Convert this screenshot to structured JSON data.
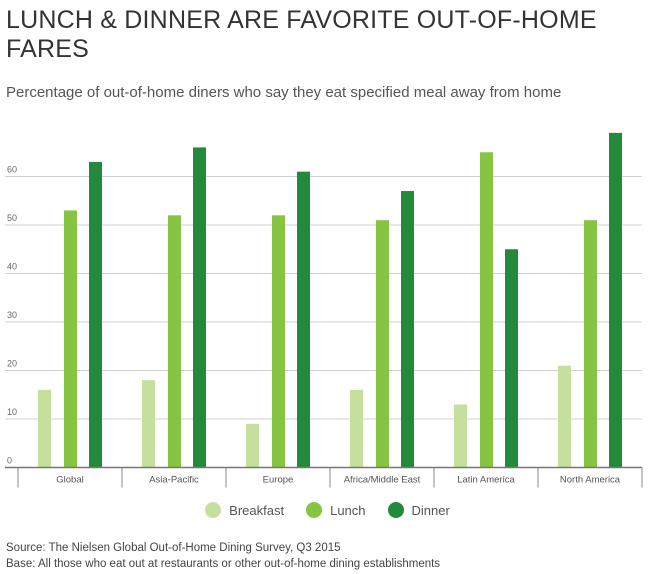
{
  "title": "LUNCH & DINNER ARE FAVORITE OUT-OF-HOME FARES",
  "subtitle": "Percentage of out-of-home diners who say they eat specified meal away from home",
  "source": "Source: The Nielsen Global Out-of-Home Dining Survey, Q3 2015",
  "base": "Base: All those who eat out at restaurants or other out-of-home dining establishments",
  "chart_data": {
    "type": "bar",
    "categories": [
      "Global",
      "Asia-Pacific",
      "Europe",
      "Africa/Middle East",
      "Latin America",
      "North America"
    ],
    "series": [
      {
        "name": "Breakfast",
        "color": "#c5e09d",
        "values": [
          16,
          18,
          9,
          16,
          13,
          21
        ]
      },
      {
        "name": "Lunch",
        "color": "#86c441",
        "values": [
          53,
          52,
          52,
          51,
          65,
          51
        ]
      },
      {
        "name": "Dinner",
        "color": "#228a3a",
        "values": [
          63,
          66,
          61,
          57,
          45,
          69
        ]
      }
    ],
    "yticks": [
      0,
      10,
      20,
      30,
      40,
      50,
      60
    ],
    "ylim": [
      0,
      70
    ],
    "grid": true,
    "legend": "bottom"
  }
}
